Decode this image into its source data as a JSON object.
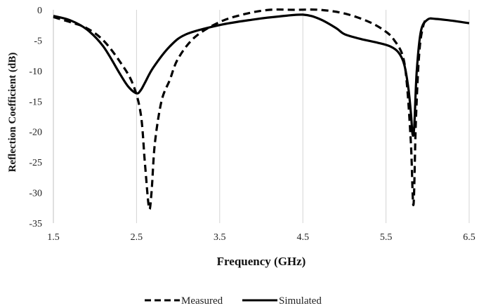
{
  "chart_data": {
    "type": "line",
    "xlabel": "Frequency (GHz)",
    "ylabel": "Reflection Coefficient (dB)",
    "xlim": [
      1.5,
      6.5
    ],
    "ylim": [
      -35,
      0
    ],
    "xticks": [
      "1.5",
      "2.5",
      "3.5",
      "4.5",
      "5.5",
      "6.5"
    ],
    "yticks": [
      "0",
      "-5",
      "-10",
      "-15",
      "-20",
      "-25",
      "-30",
      "-35"
    ],
    "grid": "vertical",
    "legend_position": "bottom",
    "series": [
      {
        "name": "Measured",
        "style": "dashed",
        "color": "#000000",
        "x": [
          1.5,
          1.7,
          1.9,
          2.1,
          2.3,
          2.45,
          2.55,
          2.6,
          2.65,
          2.68,
          2.72,
          2.8,
          2.9,
          3.0,
          3.2,
          3.5,
          3.8,
          4.1,
          4.4,
          4.7,
          5.0,
          5.3,
          5.5,
          5.6,
          5.7,
          5.75,
          5.8,
          5.83,
          5.86,
          5.9,
          5.95,
          6.0
        ],
        "y": [
          -1.2,
          -2.0,
          -3.0,
          -5.0,
          -8.5,
          -12.0,
          -17.0,
          -25.0,
          -32.5,
          -30.0,
          -22.0,
          -15.0,
          -11.5,
          -8.0,
          -4.5,
          -2.0,
          -0.7,
          0.0,
          0.0,
          0.0,
          -0.6,
          -2.0,
          -3.6,
          -5.0,
          -7.5,
          -12.0,
          -22.0,
          -32.0,
          -18.0,
          -7.0,
          -2.5,
          -1.3
        ]
      },
      {
        "name": "Simulated",
        "style": "solid",
        "color": "#000000",
        "x": [
          1.5,
          1.7,
          1.9,
          2.1,
          2.3,
          2.4,
          2.5,
          2.55,
          2.6,
          2.7,
          2.9,
          3.1,
          3.5,
          3.9,
          4.2,
          4.5,
          4.7,
          4.9,
          5.0,
          5.2,
          5.4,
          5.55,
          5.65,
          5.72,
          5.77,
          5.8,
          5.82,
          5.84,
          5.87,
          5.92,
          6.0,
          6.1,
          6.3,
          6.5
        ],
        "y": [
          -1.0,
          -1.7,
          -3.2,
          -6.0,
          -10.5,
          -12.6,
          -13.7,
          -13.2,
          -12.0,
          -9.5,
          -6.0,
          -4.0,
          -2.5,
          -1.6,
          -1.1,
          -0.8,
          -1.5,
          -3.0,
          -4.0,
          -4.8,
          -5.4,
          -6.0,
          -7.0,
          -9.0,
          -13.0,
          -17.0,
          -20.5,
          -19.0,
          -10.0,
          -3.5,
          -1.6,
          -1.5,
          -1.8,
          -2.2
        ]
      }
    ]
  }
}
